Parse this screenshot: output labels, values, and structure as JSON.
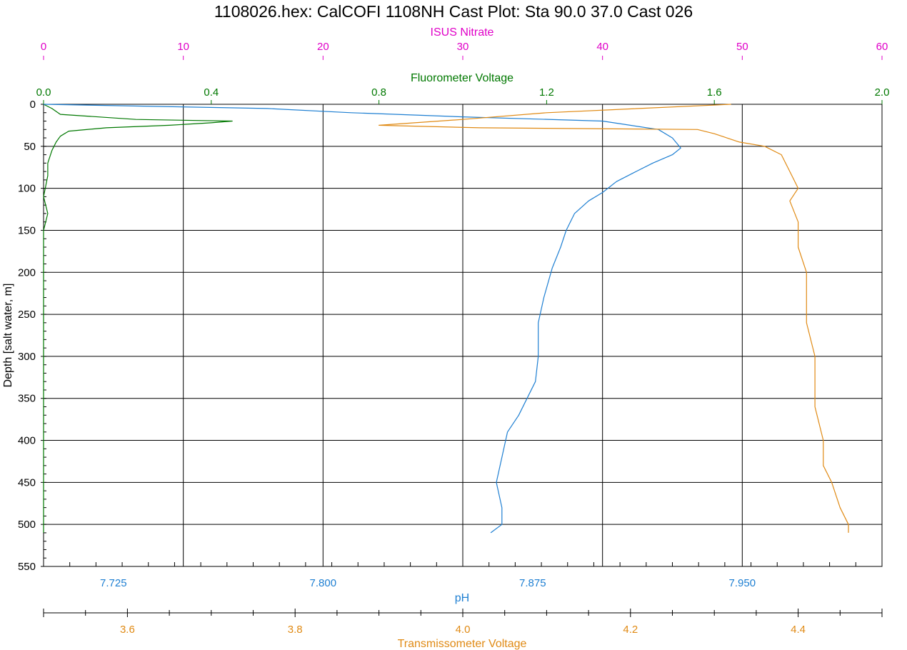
{
  "chart_data": {
    "type": "line",
    "title": "1108026.hex: CalCOFI 1108NH Cast Plot: Sta 90.0 37.0 Cast 026",
    "grid": true,
    "colors": {
      "nitrate": "#e000c8",
      "fluorometer": "#007800",
      "ph": "#1e7fd2",
      "transmissometer": "#e08a14",
      "grid": "#000000"
    },
    "y_axis": {
      "label": "Depth [salt water, m]",
      "range": [
        0,
        550
      ],
      "inverted": true,
      "ticks": [
        "0",
        "50",
        "100",
        "150",
        "200",
        "250",
        "300",
        "350",
        "400",
        "450",
        "500",
        "550"
      ]
    },
    "x_axes": [
      {
        "id": "nitrate",
        "label": "ISUS Nitrate",
        "position": "top",
        "range": [
          0,
          60
        ],
        "ticks": [
          "0",
          "10",
          "20",
          "30",
          "40",
          "50",
          "60"
        ]
      },
      {
        "id": "fluorometer",
        "label": "Fluorometer Voltage",
        "position": "top",
        "range": [
          0,
          2
        ],
        "ticks": [
          "0.0",
          "0.4",
          "0.8",
          "1.2",
          "1.6",
          "2.0"
        ]
      },
      {
        "id": "ph",
        "label": "pH",
        "position": "bottom",
        "range": [
          7.7,
          8.0
        ],
        "ticks": [
          "7.725",
          "7.800",
          "7.875",
          "7.950"
        ]
      },
      {
        "id": "transmissometer",
        "label": "Transmissometer Voltage",
        "position": "bottom",
        "range": [
          3.5,
          4.5
        ],
        "ticks": [
          "3.6",
          "3.8",
          "4.0",
          "4.2",
          "4.4"
        ]
      }
    ],
    "series": [
      {
        "name": "Fluorometer Voltage",
        "axis": "fluorometer",
        "points": [
          [
            0.0,
            0
          ],
          [
            0.02,
            5
          ],
          [
            0.04,
            12
          ],
          [
            0.22,
            18
          ],
          [
            0.45,
            20
          ],
          [
            0.4,
            22
          ],
          [
            0.3,
            25
          ],
          [
            0.15,
            28
          ],
          [
            0.06,
            32
          ],
          [
            0.04,
            38
          ],
          [
            0.03,
            45
          ],
          [
            0.02,
            55
          ],
          [
            0.01,
            70
          ],
          [
            0.01,
            85
          ],
          [
            0.0,
            110
          ],
          [
            0.01,
            130
          ],
          [
            0.0,
            150
          ],
          [
            0.0,
            200
          ],
          [
            0.0,
            250
          ],
          [
            0.0,
            300
          ],
          [
            0.0,
            350
          ],
          [
            0.0,
            400
          ],
          [
            0.0,
            450
          ],
          [
            0.0,
            500
          ],
          [
            0.0,
            510
          ]
        ]
      },
      {
        "name": "pH",
        "axis": "ph",
        "points": [
          [
            7.7,
            0
          ],
          [
            7.78,
            5
          ],
          [
            7.81,
            10
          ],
          [
            7.85,
            15
          ],
          [
            7.9,
            20
          ],
          [
            7.92,
            30
          ],
          [
            7.925,
            40
          ],
          [
            7.928,
            52
          ],
          [
            7.925,
            60
          ],
          [
            7.918,
            70
          ],
          [
            7.912,
            80
          ],
          [
            7.905,
            92
          ],
          [
            7.9,
            105
          ],
          [
            7.895,
            115
          ],
          [
            7.89,
            130
          ],
          [
            7.887,
            150
          ],
          [
            7.885,
            170
          ],
          [
            7.882,
            195
          ],
          [
            7.879,
            230
          ],
          [
            7.877,
            260
          ],
          [
            7.877,
            300
          ],
          [
            7.876,
            330
          ],
          [
            7.873,
            350
          ],
          [
            7.87,
            370
          ],
          [
            7.866,
            390
          ],
          [
            7.864,
            420
          ],
          [
            7.862,
            450
          ],
          [
            7.864,
            480
          ],
          [
            7.864,
            500
          ],
          [
            7.86,
            510
          ]
        ]
      },
      {
        "name": "Transmissometer Voltage",
        "axis": "transmissometer",
        "points": [
          [
            4.32,
            0
          ],
          [
            4.1,
            10
          ],
          [
            4.0,
            18
          ],
          [
            3.9,
            25
          ],
          [
            4.02,
            28
          ],
          [
            4.28,
            30
          ],
          [
            4.3,
            35
          ],
          [
            4.33,
            45
          ],
          [
            4.36,
            50
          ],
          [
            4.38,
            60
          ],
          [
            4.39,
            80
          ],
          [
            4.4,
            100
          ],
          [
            4.39,
            115
          ],
          [
            4.4,
            140
          ],
          [
            4.4,
            170
          ],
          [
            4.41,
            200
          ],
          [
            4.41,
            230
          ],
          [
            4.41,
            260
          ],
          [
            4.42,
            300
          ],
          [
            4.42,
            330
          ],
          [
            4.42,
            360
          ],
          [
            4.43,
            400
          ],
          [
            4.43,
            430
          ],
          [
            4.44,
            450
          ],
          [
            4.45,
            480
          ],
          [
            4.46,
            500
          ],
          [
            4.46,
            510
          ]
        ]
      }
    ]
  }
}
